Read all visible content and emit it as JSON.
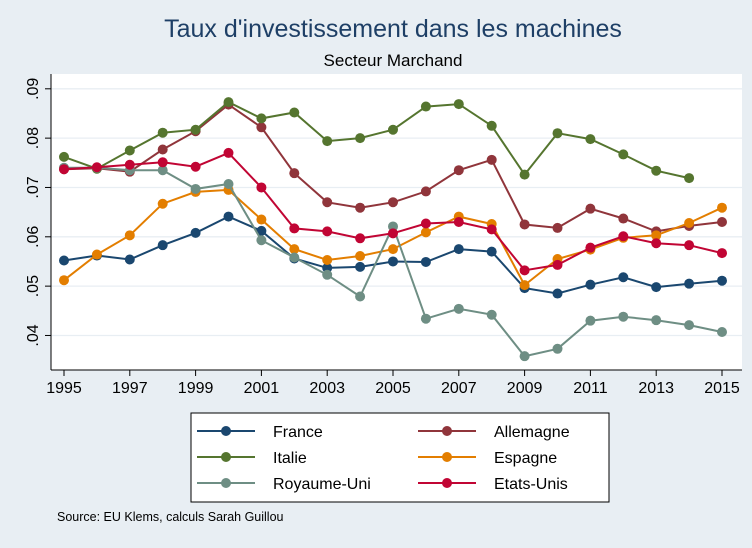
{
  "chart_data": {
    "type": "line",
    "title": "Taux d'investissement dans les machines",
    "subtitle": "Secteur Marchand",
    "source": "Source: EU Klems, calculs Sarah Guillou",
    "x": [
      1995,
      1996,
      1997,
      1998,
      1999,
      2000,
      2001,
      2002,
      2003,
      2004,
      2005,
      2006,
      2007,
      2008,
      2009,
      2010,
      2011,
      2012,
      2013,
      2014,
      2015
    ],
    "xticks": [
      1995,
      1997,
      1999,
      2001,
      2003,
      2005,
      2007,
      2009,
      2011,
      2013,
      2015
    ],
    "xtick_labels": [
      "1995",
      "1997",
      "1999",
      "2001",
      "2003",
      "2005",
      "2007",
      "2009",
      "2011",
      "2013",
      "2015"
    ],
    "yticks": [
      0.04,
      0.05,
      0.06,
      0.07,
      0.08,
      0.09
    ],
    "ytick_labels": [
      ".04",
      ".05",
      ".06",
      ".07",
      ".08",
      ".09"
    ],
    "xlim": [
      1995,
      2015
    ],
    "ylim": [
      0.033,
      0.093
    ],
    "grid": "horizontal",
    "legend_position": "bottom",
    "series": [
      {
        "name": "France",
        "color": "#1a476f",
        "values": [
          0.0552,
          0.0562,
          0.0554,
          0.0583,
          0.0608,
          0.0641,
          0.0612,
          0.0556,
          0.0537,
          0.0539,
          0.055,
          0.0549,
          0.0575,
          0.057,
          0.0496,
          0.0485,
          0.0503,
          0.0518,
          0.0498,
          0.0505,
          0.0511
        ]
      },
      {
        "name": "Allemagne",
        "color": "#90353b",
        "values": [
          0.0737,
          0.0739,
          0.0732,
          0.0777,
          0.0814,
          0.0868,
          0.0822,
          0.0729,
          0.067,
          0.0659,
          0.067,
          0.0692,
          0.0735,
          0.0756,
          0.0625,
          0.0618,
          0.0657,
          0.0637,
          0.0611,
          0.0622,
          0.063
        ]
      },
      {
        "name": "Italie",
        "color": "#55752f",
        "values": [
          0.0762,
          0.0738,
          0.0775,
          0.0811,
          0.0817,
          0.0873,
          0.084,
          0.0852,
          0.0794,
          0.08,
          0.0817,
          0.0864,
          0.0869,
          0.0825,
          0.0726,
          0.081,
          0.0798,
          0.0767,
          0.0734,
          0.0719,
          null
        ]
      },
      {
        "name": "Espagne",
        "color": "#e37e00",
        "values": [
          0.0512,
          0.0564,
          0.0603,
          0.0667,
          0.0691,
          0.0695,
          0.0635,
          0.0575,
          0.0553,
          0.0561,
          0.0575,
          0.0609,
          0.0641,
          0.0626,
          0.0502,
          0.0555,
          0.0574,
          0.0598,
          0.0603,
          0.0628,
          0.0659
        ]
      },
      {
        "name": "Royaume-Uni",
        "color": "#6e8e84",
        "values": [
          0.074,
          0.074,
          0.0735,
          0.0735,
          0.0697,
          0.0707,
          0.0593,
          0.0558,
          0.0523,
          0.0479,
          0.0621,
          0.0434,
          0.0454,
          0.0442,
          0.0358,
          0.0373,
          0.043,
          0.0438,
          0.0431,
          0.0421,
          0.0407
        ]
      },
      {
        "name": "Etats-Unis",
        "color": "#c10534",
        "values": [
          0.0737,
          0.0741,
          0.0746,
          0.0751,
          0.0742,
          0.077,
          0.07,
          0.0617,
          0.0611,
          0.0597,
          0.0607,
          0.0627,
          0.063,
          0.0615,
          0.0532,
          0.0543,
          0.0578,
          0.0601,
          0.0587,
          0.0583,
          0.0567
        ]
      }
    ]
  }
}
